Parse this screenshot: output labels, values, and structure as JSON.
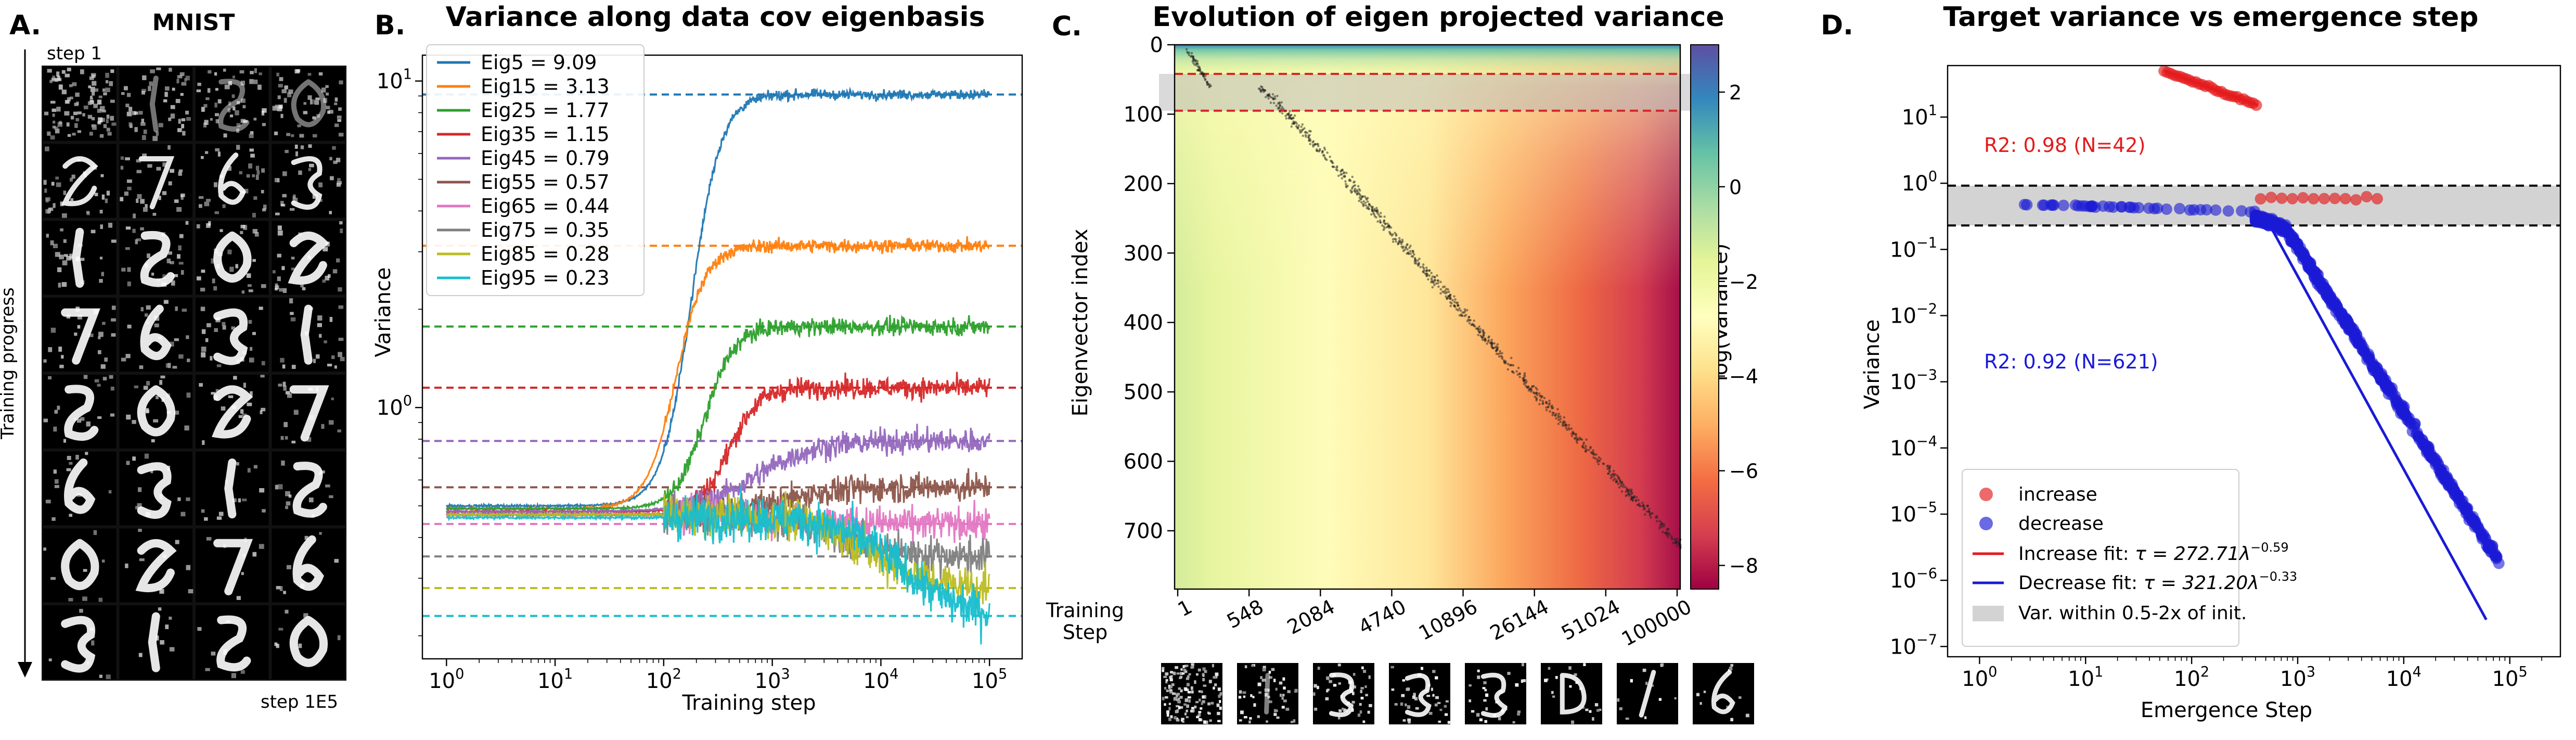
{
  "chart_data": [
    {
      "panel_label": "A.",
      "type": "image-grid",
      "title": "MNIST",
      "top_label": "step 1",
      "bottom_label": "step 1E5",
      "arrow_label": "Training progress",
      "rows": 8,
      "cols": 4
    },
    {
      "panel_label": "B.",
      "type": "line",
      "title": "Variance along data cov eigenbasis",
      "xlabel": "Training step",
      "ylabel": "Variance",
      "xscale": "log",
      "yscale": "log",
      "xlim": [
        0.6,
        200000
      ],
      "ylim": [
        0.17,
        12
      ],
      "x_ticks": [
        "10^0",
        "10^1",
        "10^2",
        "10^3",
        "10^4",
        "10^5"
      ],
      "y_ticks": [
        "10^0",
        "10^1"
      ],
      "legend_position": "top-left",
      "series": [
        {
          "name": "Eig5 = 9.09",
          "target": 9.09,
          "start": 0.5,
          "color": "#1f77b4"
        },
        {
          "name": "Eig15 = 3.13",
          "target": 3.13,
          "start": 0.49,
          "color": "#ff7f0e"
        },
        {
          "name": "Eig25 = 1.77",
          "target": 1.77,
          "start": 0.49,
          "color": "#2ca02c"
        },
        {
          "name": "Eig35 = 1.15",
          "target": 1.15,
          "start": 0.48,
          "color": "#d62728"
        },
        {
          "name": "Eig45 = 0.79",
          "target": 0.79,
          "start": 0.48,
          "color": "#9467bd"
        },
        {
          "name": "Eig55 = 0.57",
          "target": 0.57,
          "start": 0.47,
          "color": "#8c564b"
        },
        {
          "name": "Eig65 = 0.44",
          "target": 0.44,
          "start": 0.47,
          "color": "#e377c2"
        },
        {
          "name": "Eig75 = 0.35",
          "target": 0.35,
          "start": 0.47,
          "color": "#7f7f7f"
        },
        {
          "name": "Eig85 = 0.28",
          "target": 0.28,
          "start": 0.47,
          "color": "#bcbd22"
        },
        {
          "name": "Eig95 = 0.23",
          "target": 0.23,
          "start": 0.46,
          "color": "#17becf"
        }
      ]
    },
    {
      "panel_label": "C.",
      "type": "heatmap",
      "title": "Evolution of eigen projected variance",
      "ylabel": "Eigenvector index",
      "xlabel_line1": "Training",
      "xlabel_line2": "Step",
      "colorbar_label": "log(Variance)",
      "y_ticks": [
        0,
        100,
        200,
        300,
        400,
        500,
        600,
        700
      ],
      "x_ticks": [
        "1",
        "548",
        "2084",
        "4740",
        "10896",
        "26144",
        "51024",
        "100000"
      ],
      "colorbar_ticks": [
        "2",
        "0",
        "−2",
        "−4",
        "−6",
        "−8"
      ],
      "colorbar_range": [
        -8.5,
        3
      ],
      "red_dashed_lines": [
        42,
        95
      ],
      "gray_band": [
        42,
        95
      ],
      "ylim": [
        784,
        0
      ],
      "thumbnails": 8
    },
    {
      "panel_label": "D.",
      "type": "scatter",
      "title": "Target variance vs emergence step",
      "xlabel": "Emergence Step",
      "ylabel": "Variance",
      "xscale": "log",
      "yscale": "log",
      "xlim": [
        0.5,
        300000
      ],
      "ylim": [
        7e-08,
        60
      ],
      "x_ticks": [
        "10^0",
        "10^1",
        "10^2",
        "10^3",
        "10^4",
        "10^5"
      ],
      "y_ticks": [
        "10^-7",
        "10^-6",
        "10^-5",
        "10^-4",
        "10^-3",
        "10^-2",
        "10^-1",
        "10^0",
        "10^1"
      ],
      "annotation_increase": "R2: 0.98 (N=42)",
      "annotation_decrease": "R2: 0.92 (N=621)",
      "band": [
        0.23,
        0.92
      ],
      "increase_fit": {
        "coef": 272.71,
        "exp": -0.59,
        "x_range": [
          55,
          420
        ]
      },
      "decrease_fit": {
        "coef": 321.2,
        "exp": -0.33,
        "x_range": [
          480,
          60000
        ]
      },
      "legend_position": "bottom-left",
      "legend": {
        "increase": "increase",
        "decrease": "decrease",
        "increase_fit_prefix": "Increase fit: ",
        "increase_fit_formula": "τ = 272.71λ",
        "increase_fit_exp": "−0.59",
        "decrease_fit_prefix": "Decrease fit: ",
        "decrease_fit_formula": "τ = 321.20λ",
        "decrease_fit_exp": "−0.33",
        "band": "Var. within 0.5-2x of init."
      },
      "colors": {
        "increase": "#e41a1c",
        "decrease": "#1a1ad6",
        "band": "#d3d3d3"
      }
    }
  ]
}
